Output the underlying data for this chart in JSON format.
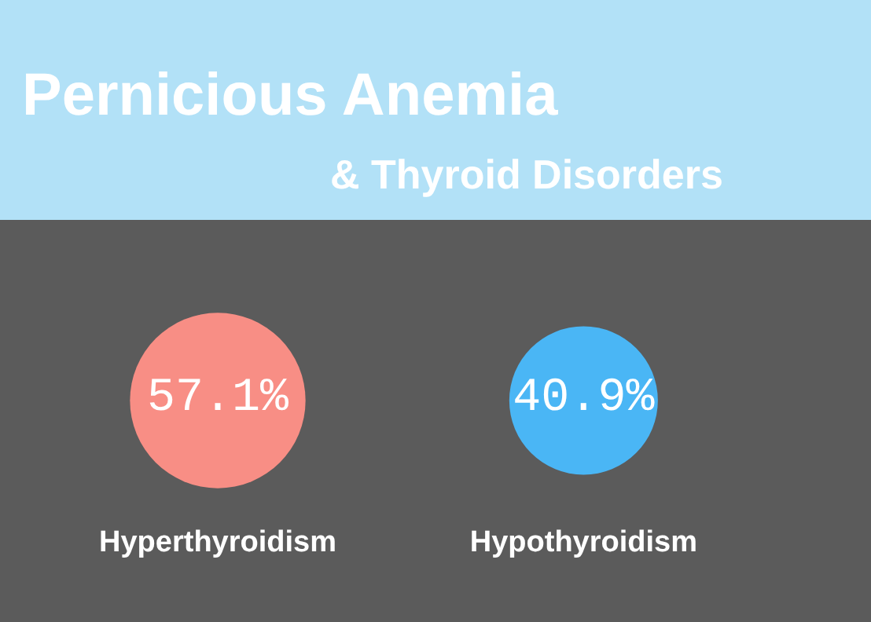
{
  "chart_data": {
    "type": "other",
    "title": "Pernicious Anemia",
    "subtitle": "& Thyroid Disorders",
    "categories": [
      "Hyperthyroidism",
      "Hypothyroidism"
    ],
    "values": [
      57.1,
      40.9
    ],
    "value_labels": [
      "57.1%",
      "40.9%"
    ],
    "colors": [
      "#f88e85",
      "#4ab6f5"
    ]
  }
}
